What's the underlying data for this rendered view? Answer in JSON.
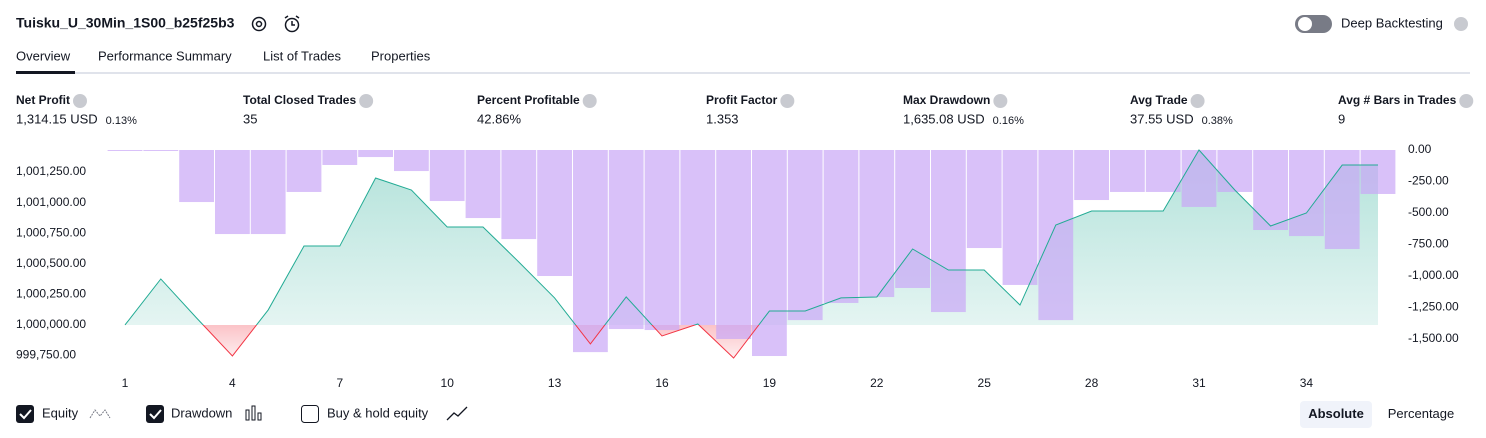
{
  "header": {
    "title": "Tuisku_U_30Min_1S00_b25f25b3",
    "deep_backtesting": "Deep Backtesting"
  },
  "tabs": [
    "Overview",
    "Performance Summary",
    "List of Trades",
    "Properties"
  ],
  "metrics": [
    {
      "label": "Net Profit",
      "value": "1,314.15 USD",
      "percent": "0.13%",
      "color": "#22ab94"
    },
    {
      "label": "Total Closed Trades",
      "value": "35",
      "color": "#131722"
    },
    {
      "label": "Percent Profitable",
      "value": "42.86%",
      "color": "#22ab94"
    },
    {
      "label": "Profit Factor",
      "value": "1.353",
      "color": "#22ab94"
    },
    {
      "label": "Max Drawdown",
      "value": "1,635.08 USD",
      "percent": "0.16%",
      "color": "#f23645"
    },
    {
      "label": "Avg Trade",
      "value": "37.55 USD",
      "percent": "0.38%",
      "color": "#22ab94"
    },
    {
      "label": "Avg # Bars in Trades",
      "value": "9",
      "color": "#131722"
    }
  ],
  "chart_data": {
    "type": "equity-drawdown",
    "categories": [
      1,
      null,
      null,
      4,
      null,
      null,
      7,
      null,
      null,
      10,
      null,
      null,
      13,
      null,
      null,
      16,
      null,
      null,
      19,
      null,
      null,
      22,
      null,
      null,
      25,
      null,
      null,
      28,
      null,
      null,
      31,
      null,
      null,
      34,
      null,
      null
    ],
    "series": [
      {
        "name": "Equity",
        "color": "#22ab94",
        "negative_color": "#f23645",
        "values": [
          1000000,
          1000376,
          1000057,
          999747,
          1000123,
          1000645,
          1000645,
          1001201,
          1001103,
          1000801,
          1000801,
          1000515,
          1000221,
          999845,
          1000229,
          999910,
          1000008,
          999730,
          1000114,
          1000114,
          1000221,
          1000229,
          1000621,
          1000449,
          1000449,
          1000163,
          1000817,
          1000931,
          1000931,
          1000931,
          1001430,
          1001103,
          1000809,
          1000915,
          1001307,
          1001307
        ]
      },
      {
        "name": "Drawdown",
        "color": "#c9a6f7",
        "axis": "y2",
        "values": [
          -5,
          -5,
          -413,
          -667,
          -667,
          -333,
          -119,
          -56,
          -167,
          -405,
          -540,
          -707,
          -1000,
          -1604,
          -1421,
          -1429,
          -1389,
          -1500,
          -1635,
          -1350,
          -1214,
          -1167,
          -1095,
          -1286,
          -778,
          -1071,
          -1350,
          -397,
          -333,
          -333,
          -452,
          -333,
          -635,
          -683,
          -786,
          -349
        ]
      }
    ],
    "ylim": [
      999632,
      1001430
    ],
    "yticks": [
      {
        "value": 1001250,
        "label": "1,001,250.00"
      },
      {
        "value": 1001000,
        "label": "1,001,000.00"
      },
      {
        "value": 1000750,
        "label": "1,000,750.00"
      },
      {
        "value": 1000500,
        "label": "1,000,500.00"
      },
      {
        "value": 1000250,
        "label": "1,000,250.00"
      },
      {
        "value": 1000000,
        "label": "1,000,000.00"
      },
      {
        "value": 999750,
        "label": "999,750.00"
      }
    ],
    "y2lim": [
      -1746,
      0
    ],
    "y2ticks": [
      {
        "value": 0,
        "label": "0.00"
      },
      {
        "value": -250,
        "label": "-250.00"
      },
      {
        "value": -500,
        "label": "-500.00"
      },
      {
        "value": -750,
        "label": "-750.00"
      },
      {
        "value": -1000,
        "label": "-1,000.00"
      },
      {
        "value": -1250,
        "label": "-1,250.00"
      },
      {
        "value": -1500,
        "label": "-1,500.00"
      }
    ]
  },
  "legend": {
    "buy_hold": "Buy & hold equity"
  },
  "view_modes": [
    "Absolute",
    "Percentage"
  ]
}
